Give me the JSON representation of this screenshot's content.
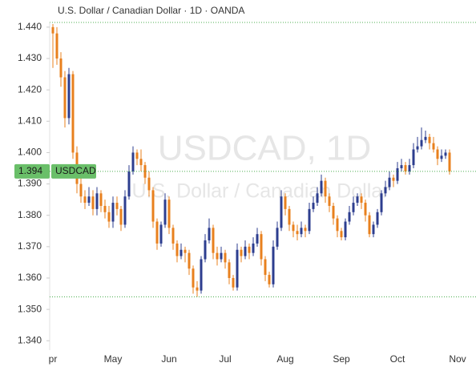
{
  "chart_data": {
    "type": "candlestick",
    "title": "U.S. Dollar / Canadian Dollar · 1D · OANDA",
    "watermark": {
      "symbol_line": "USDCAD, 1D",
      "name_line": "U.S. Dollar / Canadian Dollar"
    },
    "symbol": "USDCAD",
    "last_price": 1.394,
    "up_color": "#2d3e8f",
    "down_color": "#e8801e",
    "ylim": [
      1.337,
      1.4415
    ],
    "yticks": [
      {
        "value": 1.34,
        "label": "1.340"
      },
      {
        "value": 1.35,
        "label": "1.350"
      },
      {
        "value": 1.36,
        "label": "1.360"
      },
      {
        "value": 1.37,
        "label": "1.370"
      },
      {
        "value": 1.38,
        "label": "1.380"
      },
      {
        "value": 1.39,
        "label": "1.390"
      },
      {
        "value": 1.4,
        "label": "1.400"
      },
      {
        "value": 1.41,
        "label": "1.410"
      },
      {
        "value": 1.42,
        "label": "1.420"
      },
      {
        "value": 1.43,
        "label": "1.430"
      },
      {
        "value": 1.44,
        "label": "1.440"
      }
    ],
    "categories": [
      "pr",
      null,
      null,
      null,
      null,
      null,
      null,
      null,
      null,
      null,
      null,
      null,
      null,
      null,
      null,
      "May",
      null,
      null,
      null,
      null,
      null,
      null,
      null,
      null,
      null,
      null,
      null,
      null,
      null,
      "Jun",
      null,
      null,
      null,
      null,
      null,
      null,
      null,
      null,
      null,
      null,
      null,
      null,
      null,
      "Jul",
      null,
      null,
      null,
      null,
      null,
      null,
      null,
      null,
      null,
      null,
      null,
      null,
      null,
      null,
      "Aug",
      null,
      null,
      null,
      null,
      null,
      null,
      null,
      null,
      null,
      null,
      null,
      null,
      null,
      "Sep",
      null,
      null,
      null,
      null,
      null,
      null,
      null,
      null,
      null,
      null,
      null,
      null,
      null,
      "Oct",
      null,
      null,
      null,
      null,
      null,
      null,
      null,
      null,
      null,
      null,
      null,
      null,
      null,
      null,
      "Nov",
      null,
      null,
      null,
      null
    ],
    "open": [
      1.44,
      1.438,
      1.43,
      1.424,
      1.411,
      1.425,
      1.4,
      1.39,
      1.386,
      1.384,
      1.386,
      1.382,
      1.387,
      1.383,
      1.381,
      1.378,
      1.384,
      1.382,
      1.377,
      1.386,
      1.394,
      1.4,
      1.398,
      1.396,
      1.392,
      1.388,
      1.378,
      1.371,
      1.377,
      1.385,
      1.376,
      1.371,
      1.367,
      1.369,
      1.368,
      1.363,
      1.357,
      1.356,
      1.366,
      1.372,
      1.376,
      1.368,
      1.366,
      1.368,
      1.365,
      1.36,
      1.357,
      1.369,
      1.367,
      1.37,
      1.368,
      1.371,
      1.374,
      1.366,
      1.361,
      1.358,
      1.37,
      1.376,
      1.386,
      1.382,
      1.377,
      1.375,
      1.374,
      1.376,
      1.375,
      1.382,
      1.384,
      1.387,
      1.391,
      1.386,
      1.383,
      1.379,
      1.375,
      1.373,
      1.378,
      1.381,
      1.384,
      1.386,
      1.384,
      1.38,
      1.374,
      1.377,
      1.381,
      1.387,
      1.389,
      1.392,
      1.391,
      1.395,
      1.396,
      1.394,
      1.396,
      1.401,
      1.402,
      1.404,
      1.405,
      1.403,
      1.401,
      1.398,
      1.399,
      1.4,
      null,
      null,
      null,
      null,
      null,
      null
    ],
    "high": [
      1.441,
      1.44,
      1.432,
      1.426,
      1.427,
      1.426,
      1.402,
      1.392,
      1.388,
      1.389,
      1.388,
      1.389,
      1.388,
      1.385,
      1.383,
      1.386,
      1.386,
      1.383,
      1.388,
      1.396,
      1.402,
      1.401,
      1.401,
      1.397,
      1.394,
      1.389,
      1.379,
      1.378,
      1.387,
      1.386,
      1.377,
      1.372,
      1.371,
      1.37,
      1.369,
      1.364,
      1.359,
      1.367,
      1.374,
      1.379,
      1.377,
      1.37,
      1.37,
      1.369,
      1.366,
      1.361,
      1.371,
      1.37,
      1.372,
      1.371,
      1.373,
      1.376,
      1.375,
      1.367,
      1.362,
      1.372,
      1.378,
      1.388,
      1.387,
      1.383,
      1.378,
      1.377,
      1.378,
      1.377,
      1.384,
      1.386,
      1.389,
      1.393,
      1.392,
      1.387,
      1.384,
      1.38,
      1.376,
      1.379,
      1.383,
      1.386,
      1.387,
      1.387,
      1.385,
      1.381,
      1.378,
      1.382,
      1.388,
      1.391,
      1.394,
      1.393,
      1.397,
      1.398,
      1.397,
      1.398,
      1.403,
      1.405,
      1.408,
      1.407,
      1.406,
      1.405,
      1.402,
      1.401,
      1.401,
      1.401,
      null,
      null,
      null,
      null,
      null,
      null
    ],
    "low": [
      1.427,
      1.428,
      1.421,
      1.408,
      1.409,
      1.398,
      1.387,
      1.384,
      1.382,
      1.383,
      1.38,
      1.38,
      1.381,
      1.379,
      1.376,
      1.376,
      1.38,
      1.375,
      1.376,
      1.385,
      1.393,
      1.396,
      1.394,
      1.39,
      1.386,
      1.376,
      1.369,
      1.37,
      1.376,
      1.374,
      1.369,
      1.365,
      1.366,
      1.365,
      1.361,
      1.355,
      1.354,
      1.355,
      1.365,
      1.371,
      1.366,
      1.364,
      1.365,
      1.363,
      1.358,
      1.356,
      1.356,
      1.365,
      1.366,
      1.366,
      1.367,
      1.37,
      1.364,
      1.359,
      1.357,
      1.357,
      1.369,
      1.375,
      1.38,
      1.375,
      1.373,
      1.372,
      1.373,
      1.373,
      1.374,
      1.381,
      1.383,
      1.386,
      1.384,
      1.381,
      1.377,
      1.373,
      1.372,
      1.372,
      1.377,
      1.38,
      1.383,
      1.382,
      1.378,
      1.373,
      1.373,
      1.376,
      1.38,
      1.386,
      1.388,
      1.389,
      1.39,
      1.394,
      1.393,
      1.393,
      1.395,
      1.4,
      1.401,
      1.403,
      1.401,
      1.4,
      1.396,
      1.397,
      1.398,
      1.393,
      null,
      null,
      null,
      null,
      null,
      null
    ],
    "close": [
      1.438,
      1.43,
      1.424,
      1.411,
      1.425,
      1.4,
      1.39,
      1.386,
      1.384,
      1.386,
      1.382,
      1.387,
      1.383,
      1.381,
      1.378,
      1.384,
      1.382,
      1.377,
      1.386,
      1.394,
      1.4,
      1.398,
      1.396,
      1.392,
      1.388,
      1.378,
      1.371,
      1.377,
      1.385,
      1.376,
      1.371,
      1.367,
      1.369,
      1.368,
      1.363,
      1.357,
      1.356,
      1.366,
      1.372,
      1.376,
      1.368,
      1.366,
      1.368,
      1.365,
      1.36,
      1.357,
      1.369,
      1.367,
      1.37,
      1.368,
      1.371,
      1.374,
      1.366,
      1.361,
      1.358,
      1.37,
      1.376,
      1.386,
      1.382,
      1.377,
      1.375,
      1.374,
      1.376,
      1.375,
      1.382,
      1.384,
      1.387,
      1.391,
      1.386,
      1.383,
      1.379,
      1.375,
      1.373,
      1.378,
      1.381,
      1.384,
      1.386,
      1.384,
      1.38,
      1.374,
      1.377,
      1.381,
      1.387,
      1.389,
      1.392,
      1.391,
      1.395,
      1.396,
      1.394,
      1.396,
      1.401,
      1.402,
      1.404,
      1.405,
      1.403,
      1.401,
      1.398,
      1.399,
      1.4,
      1.394,
      null,
      null,
      null,
      null,
      null,
      null
    ]
  }
}
